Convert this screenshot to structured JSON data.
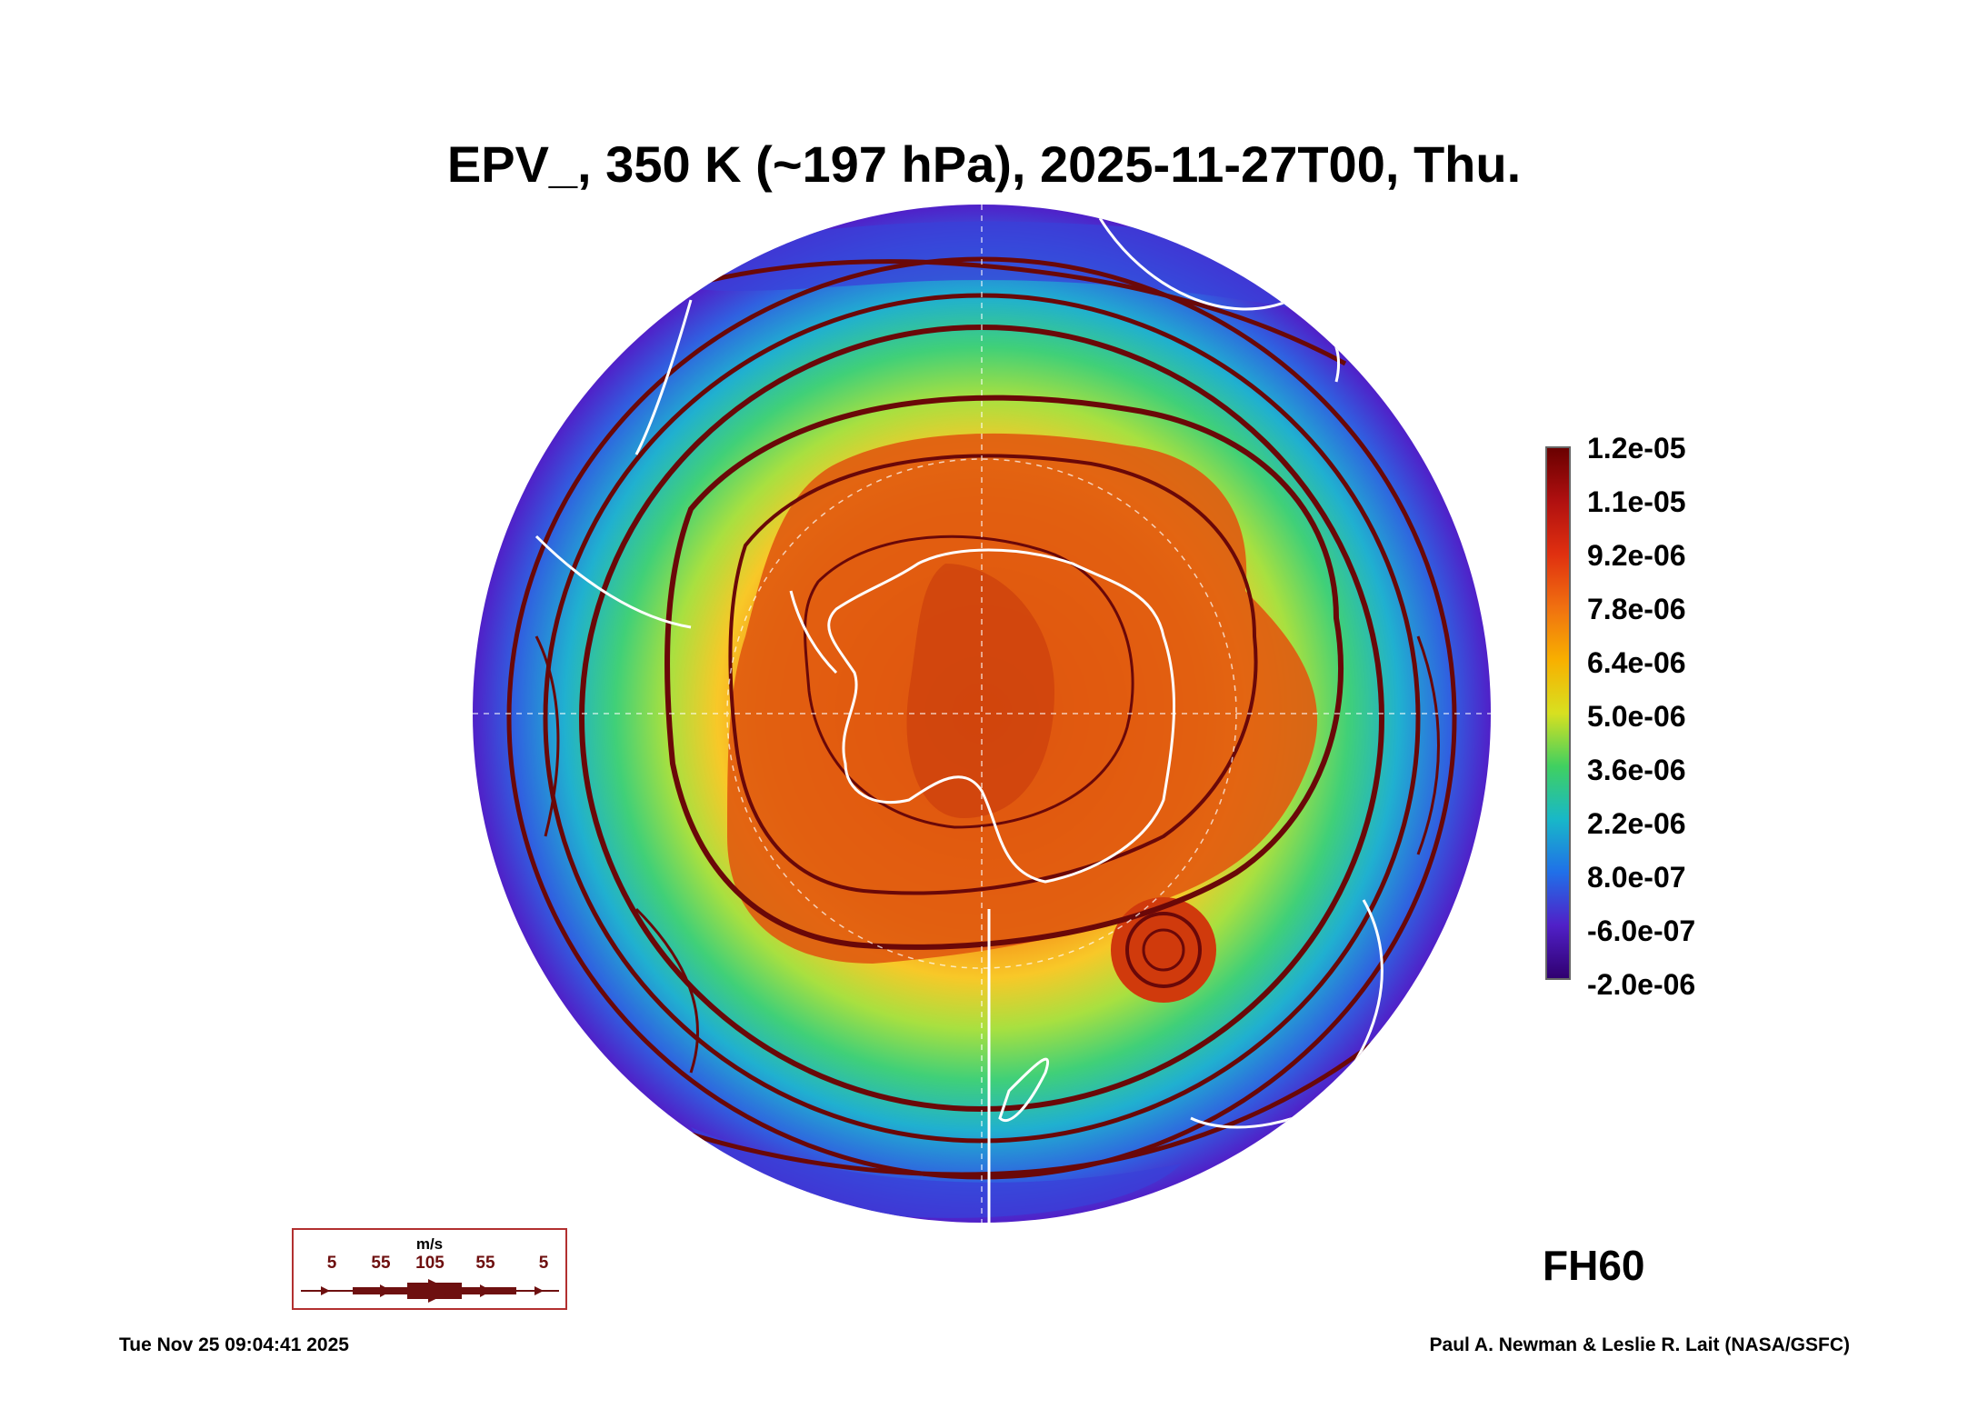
{
  "title": "EPV_, 350 K (~197 hPa), 2025-11-27T00, Thu.",
  "colorbar": {
    "labels": [
      "1.2e-05",
      "1.1e-05",
      "9.2e-06",
      "7.8e-06",
      "6.4e-06",
      "5.0e-06",
      "3.6e-06",
      "2.2e-06",
      "8.0e-07",
      "-6.0e-07",
      "-2.0e-06"
    ],
    "colors": [
      "#6a0000",
      "#b01010",
      "#e03010",
      "#f07010",
      "#f8b000",
      "#d8e020",
      "#40d060",
      "#18b8c8",
      "#2070e8",
      "#5020c8",
      "#300070"
    ]
  },
  "map": {
    "projection": "south polar stereographic",
    "field_colors": {
      "core": "#d84010",
      "high": "#f07818",
      "mid": "#f8c020",
      "lowmid": "#40d070",
      "low": "#20a8d8",
      "edge": "#4a30d0"
    },
    "streamline_color": "#6a0808",
    "coastline_color": "#ffffff"
  },
  "forecast_hour": "FH60",
  "wind_legend": {
    "unit": "m/s",
    "values": [
      "5",
      "55",
      "105",
      "55",
      "5"
    ]
  },
  "footer": {
    "timestamp": "Tue Nov 25 09:04:41 2025",
    "credit": "Paul A. Newman & Leslie R. Lait (NASA/GSFC)"
  }
}
